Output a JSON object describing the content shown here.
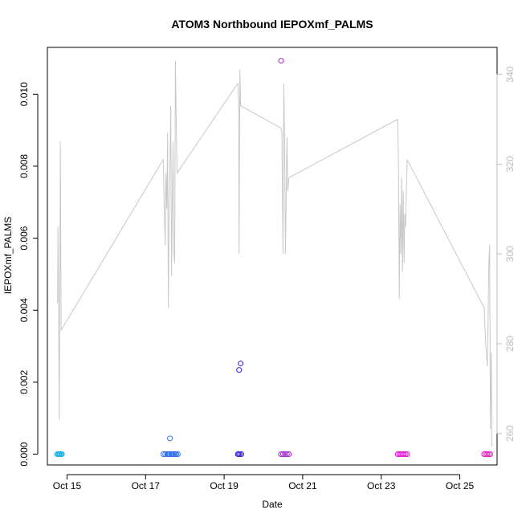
{
  "chart_data": {
    "type": "scatter",
    "title": "ATOM3 Northbound IEPOXmf_PALMS",
    "xlabel": "Date",
    "ylabel": "IEPOXmf_PALMS",
    "x_unit": "day of October 2017",
    "xlim": [
      14.5,
      25.95
    ],
    "ylim": [
      -0.0003,
      0.0113
    ],
    "y_ticks": [
      0.0,
      0.002,
      0.004,
      0.006,
      0.008,
      0.01
    ],
    "y_tick_labels": [
      "0.000",
      "0.002",
      "0.004",
      "0.006",
      "0.008",
      "0.010"
    ],
    "x_ticks": [
      15,
      17,
      19,
      21,
      23,
      25
    ],
    "x_tick_labels": [
      "Oct 15",
      "Oct 17",
      "Oct 19",
      "Oct 21",
      "Oct 23",
      "Oct 25"
    ],
    "secondary_axis": {
      "position": "right",
      "color": "#bdbdbd",
      "ylim": [
        253,
        346
      ],
      "ticks": [
        260,
        280,
        300,
        320,
        340
      ],
      "tick_labels": [
        "260",
        "280",
        "300",
        "320",
        "340"
      ]
    },
    "grid": false,
    "legend": "none",
    "scatter_series": [
      {
        "color": "#1ab3e6",
        "points": [
          [
            14.75,
            0
          ],
          [
            14.78,
            0
          ],
          [
            14.8,
            0
          ],
          [
            14.82,
            0
          ],
          [
            14.85,
            0
          ],
          [
            14.87,
            0
          ]
        ]
      },
      {
        "color": "#2f6fea",
        "points": [
          [
            17.45,
            0
          ],
          [
            17.5,
            0
          ],
          [
            17.55,
            0
          ],
          [
            17.58,
            0
          ],
          [
            17.6,
            0
          ],
          [
            17.62,
            0.00044
          ],
          [
            17.65,
            0
          ],
          [
            17.68,
            0
          ],
          [
            17.72,
            0
          ],
          [
            17.75,
            0
          ],
          [
            17.78,
            0
          ],
          [
            17.82,
            0
          ]
        ]
      },
      {
        "color": "#3b22e0",
        "points": [
          [
            19.35,
            0
          ],
          [
            19.37,
            0
          ],
          [
            19.38,
            0.00234
          ],
          [
            19.4,
            0
          ],
          [
            19.42,
            0.00252
          ],
          [
            19.44,
            0
          ]
        ]
      },
      {
        "color": "#a020d0",
        "points": [
          [
            20.45,
            0.01093
          ],
          [
            20.45,
            0
          ],
          [
            20.5,
            0
          ],
          [
            20.55,
            0
          ],
          [
            20.6,
            0
          ],
          [
            20.65,
            0
          ]
        ]
      },
      {
        "color": "#e01ad2",
        "points": [
          [
            23.42,
            0
          ],
          [
            23.46,
            0
          ],
          [
            23.5,
            0
          ],
          [
            23.54,
            0
          ],
          [
            23.58,
            0
          ],
          [
            23.62,
            0
          ],
          [
            23.66,
            0
          ]
        ]
      },
      {
        "color": "#f01ac0",
        "points": [
          [
            25.62,
            0
          ],
          [
            25.66,
            0
          ],
          [
            25.7,
            0
          ],
          [
            25.74,
            0
          ],
          [
            25.78,
            0
          ]
        ]
      }
    ],
    "line_series": {
      "axis": "right",
      "color": "#c8c8c8",
      "points": [
        [
          14.76,
          289
        ],
        [
          14.77,
          306
        ],
        [
          14.78,
          295
        ],
        [
          14.79,
          279
        ],
        [
          14.8,
          263
        ],
        [
          14.81,
          280
        ],
        [
          14.82,
          300
        ],
        [
          14.83,
          325
        ],
        [
          14.85,
          283
        ],
        [
          17.45,
          321
        ],
        [
          17.48,
          309
        ],
        [
          17.5,
          302
        ],
        [
          17.52,
          318
        ],
        [
          17.54,
          310
        ],
        [
          17.56,
          327
        ],
        [
          17.58,
          288
        ],
        [
          17.6,
          310
        ],
        [
          17.62,
          319
        ],
        [
          17.64,
          333
        ],
        [
          17.66,
          295
        ],
        [
          17.68,
          310
        ],
        [
          17.7,
          325
        ],
        [
          17.72,
          300
        ],
        [
          17.74,
          298
        ],
        [
          17.76,
          343
        ],
        [
          17.8,
          318
        ],
        [
          19.35,
          338
        ],
        [
          19.37,
          333
        ],
        [
          19.38,
          300
        ],
        [
          19.4,
          341
        ],
        [
          19.42,
          333
        ],
        [
          20.45,
          328
        ],
        [
          20.47,
          327
        ],
        [
          20.5,
          300
        ],
        [
          20.52,
          338
        ],
        [
          20.54,
          325
        ],
        [
          20.56,
          300
        ],
        [
          20.58,
          313
        ],
        [
          20.6,
          326
        ],
        [
          20.62,
          314
        ],
        [
          20.65,
          317
        ],
        [
          23.42,
          330
        ],
        [
          23.44,
          319
        ],
        [
          23.46,
          290
        ],
        [
          23.48,
          311
        ],
        [
          23.5,
          300
        ],
        [
          23.52,
          317
        ],
        [
          23.54,
          296
        ],
        [
          23.56,
          314
        ],
        [
          23.58,
          298
        ],
        [
          23.6,
          309
        ],
        [
          23.62,
          306
        ],
        [
          23.66,
          321
        ],
        [
          25.62,
          288
        ],
        [
          25.66,
          280
        ],
        [
          25.7,
          275
        ],
        [
          25.72,
          285
        ],
        [
          25.74,
          298
        ],
        [
          25.76,
          302
        ],
        [
          25.78,
          261
        ],
        [
          25.8,
          278
        ],
        [
          25.82,
          257
        ]
      ]
    }
  }
}
